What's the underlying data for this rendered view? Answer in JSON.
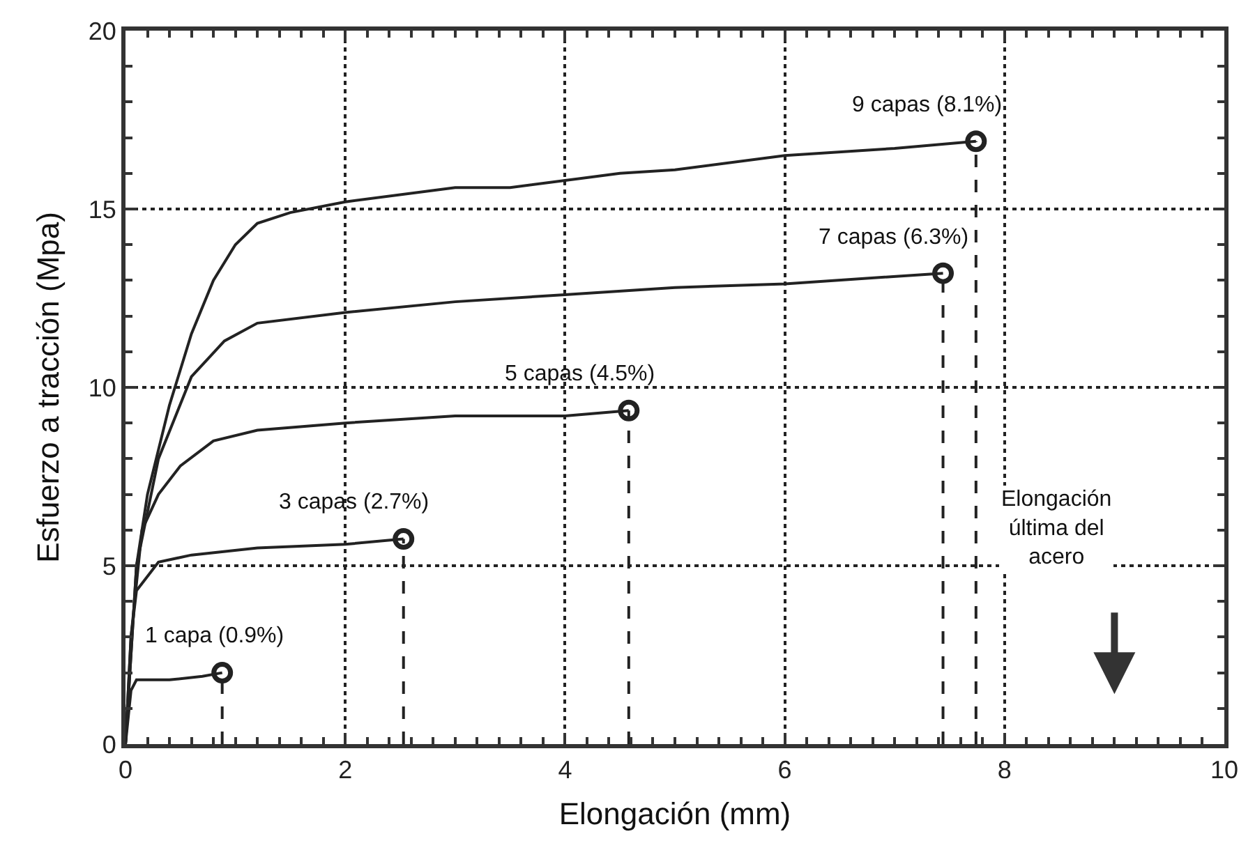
{
  "chart_data": {
    "type": "line",
    "xlabel": "Elongación (mm)",
    "ylabel": "Esfuerzo a tracción (Mpa)",
    "xlim": [
      0,
      10
    ],
    "xticks": [
      0,
      2,
      4,
      6,
      8,
      10
    ],
    "ylim": [
      0,
      20
    ],
    "yticks": [
      0,
      5,
      10,
      15,
      20
    ],
    "grid": true,
    "line_style": "solid",
    "series": [
      {
        "color": "#222222",
        "x": [
          0,
          0.05,
          0.1,
          0.4,
          0.7,
          0.88
        ],
        "values": [
          0,
          1.5,
          1.8,
          1.8,
          1.9,
          2.0
        ]
      },
      {
        "color": "#222222",
        "x": [
          0,
          0.05,
          0.1,
          0.3,
          0.6,
          1.2,
          2.0,
          2.53
        ],
        "values": [
          0,
          3.0,
          4.3,
          5.1,
          5.3,
          5.5,
          5.6,
          5.75
        ]
      },
      {
        "color": "#222222",
        "x": [
          0,
          0.05,
          0.15,
          0.3,
          0.5,
          0.8,
          1.2,
          2.0,
          3.0,
          4.0,
          4.58
        ],
        "values": [
          0,
          3.0,
          6.0,
          7.0,
          7.8,
          8.5,
          8.8,
          9.0,
          9.2,
          9.2,
          9.35
        ]
      },
      {
        "color": "#222222",
        "x": [
          0,
          0.1,
          0.3,
          0.6,
          0.9,
          1.2,
          2.0,
          3.0,
          4.0,
          5.0,
          6.0,
          7.44
        ],
        "values": [
          0,
          5.0,
          8.0,
          10.3,
          11.3,
          11.8,
          12.1,
          12.4,
          12.6,
          12.8,
          12.9,
          13.2
        ]
      },
      {
        "color": "#222222",
        "x": [
          0,
          0.1,
          0.2,
          0.4,
          0.6,
          0.8,
          1.0,
          1.2,
          1.5,
          2.0,
          3.0,
          3.5,
          4.0,
          4.5,
          5.0,
          6.0,
          7.0,
          7.74
        ],
        "values": [
          0,
          5.0,
          7.0,
          9.5,
          11.5,
          13.0,
          14.0,
          14.6,
          14.9,
          15.2,
          15.6,
          15.6,
          15.8,
          16.0,
          16.1,
          16.5,
          16.7,
          16.9
        ]
      },
      {
        "color": "#222222",
        "line_style": "dashed",
        "x": [
          0.88,
          0.88
        ],
        "values": [
          0,
          2.0
        ]
      },
      {
        "color": "#222222",
        "line_style": "dashed",
        "x": [
          2.53,
          2.53
        ],
        "values": [
          0,
          5.75
        ]
      },
      {
        "color": "#222222",
        "line_style": "dashed",
        "x": [
          4.58,
          4.58
        ],
        "values": [
          0,
          9.35
        ]
      },
      {
        "color": "#222222",
        "line_style": "dashed",
        "x": [
          7.44,
          7.44
        ],
        "values": [
          0,
          13.2
        ]
      },
      {
        "color": "#222222",
        "line_style": "dashed",
        "x": [
          7.74,
          7.74
        ],
        "values": [
          0,
          16.9
        ]
      },
      {
        "type": "scatter",
        "marker": "circle",
        "color": "#222222",
        "x": [
          0.88,
          2.53,
          4.58,
          7.44,
          7.74
        ],
        "values": [
          2.0,
          5.75,
          9.35,
          13.2,
          16.9
        ]
      }
    ],
    "annotations": [
      {
        "text": "1 capa (0.9%)",
        "x": 0.88,
        "y": 2.0
      },
      {
        "text": "3 capas (2.7%)",
        "x": 2.53,
        "y": 5.75
      },
      {
        "text": "5 capas (4.5%)",
        "x": 4.58,
        "y": 9.35
      },
      {
        "text": "7 capas (6.3%)",
        "x": 7.44,
        "y": 13.2
      },
      {
        "text": "9 capas (8.1%)",
        "x": 7.74,
        "y": 16.9
      },
      "Elongación\núltima del\nacero"
    ]
  }
}
